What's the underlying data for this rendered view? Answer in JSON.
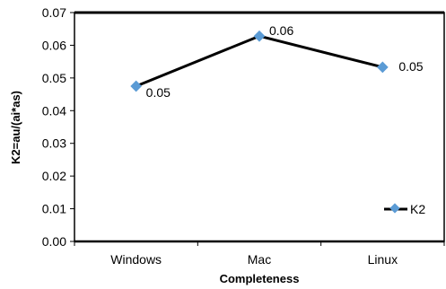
{
  "chart_data": {
    "type": "line",
    "categories": [
      "Windows",
      "Mac",
      "Linux"
    ],
    "series": [
      {
        "name": "K2",
        "values": [
          0.0475,
          0.0628,
          0.0533
        ],
        "data_labels": [
          "0.05",
          "0.06",
          "0.05"
        ]
      }
    ],
    "xlabel": "Completeness",
    "ylabel": "K2=au/(ai*as)",
    "ylim": [
      0,
      0.07
    ],
    "yticks": [
      "0.00",
      "0.01",
      "0.02",
      "0.03",
      "0.04",
      "0.05",
      "0.06",
      "0.07"
    ],
    "grid": false,
    "legend": "bottom-right",
    "colors": {
      "line": "#000000",
      "marker": "#5B9BD5",
      "frame": "#000000"
    }
  }
}
